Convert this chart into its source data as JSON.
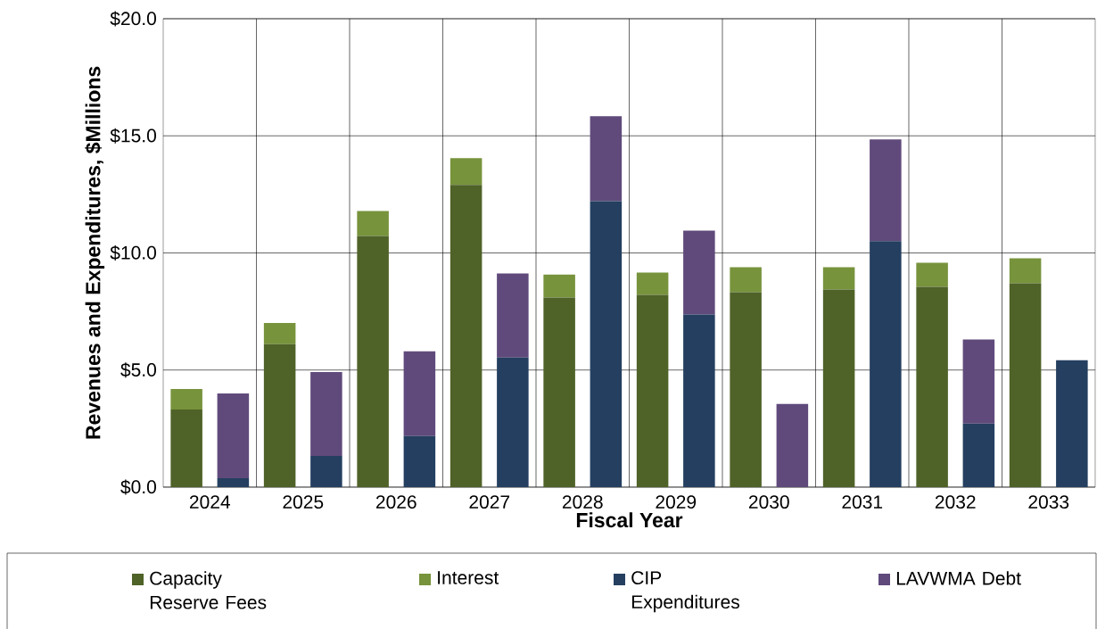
{
  "chart_data": {
    "type": "bar",
    "stacked": true,
    "xlabel": "Fiscal Year",
    "ylabel": "Revenues and Expenditures, $Millions",
    "categories": [
      "2024",
      null,
      "2025",
      null,
      "2026",
      null,
      "2027",
      null,
      "2028",
      null,
      "2029",
      null,
      "2030",
      null,
      "2031",
      null,
      "2032",
      null,
      "2033",
      null
    ],
    "series": [
      {
        "name": "Capacity Reserve Fees",
        "color": "#4f6228",
        "values": [
          3.31,
          null,
          6.1,
          null,
          10.72,
          null,
          12.9,
          null,
          8.09,
          null,
          8.21,
          null,
          8.32,
          null,
          8.44,
          null,
          8.55,
          null,
          8.7,
          null
        ]
      },
      {
        "name": "Interest",
        "color": "#77933c",
        "values": [
          0.88,
          null,
          0.91,
          null,
          1.07,
          null,
          1.15,
          null,
          0.99,
          null,
          0.95,
          null,
          1.07,
          null,
          0.95,
          null,
          1.03,
          null,
          1.07,
          null
        ]
      },
      {
        "name": "CIP Expenditures",
        "color": "#243f60",
        "values": [
          null,
          0.38,
          null,
          1.33,
          null,
          2.18,
          null,
          5.53,
          null,
          12.21,
          null,
          7.37,
          null,
          0,
          null,
          10.5,
          null,
          2.71,
          null,
          5.42
        ]
      },
      {
        "name": "LAVWMA Debt",
        "color": "#604a7b",
        "values": [
          null,
          3.62,
          null,
          3.58,
          null,
          3.62,
          null,
          3.59,
          null,
          3.63,
          null,
          3.58,
          null,
          3.55,
          null,
          4.35,
          null,
          3.59,
          null,
          0
        ]
      }
    ],
    "ylim": [
      0,
      20
    ],
    "yticks": [
      {
        "value": 0,
        "label": "$0.0"
      },
      {
        "value": 5,
        "label": "$5.0"
      },
      {
        "value": 10,
        "label": "$10.0"
      },
      {
        "value": 15,
        "label": "$15.0"
      },
      {
        "value": 20,
        "label": "$20.0"
      }
    ],
    "grid": true,
    "legend": "bottom"
  }
}
